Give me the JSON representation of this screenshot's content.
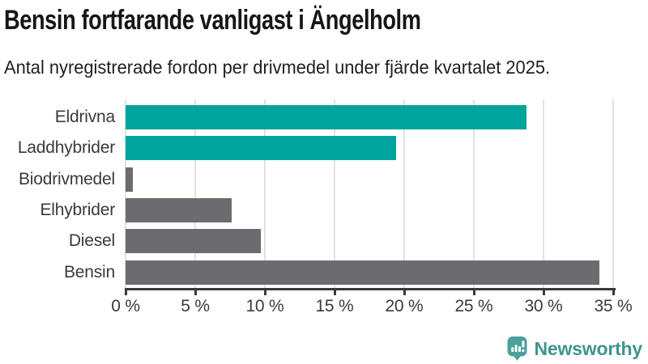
{
  "header": {
    "title": "Bensin fortfarande vanligast i Ängelholm",
    "subtitle": "Antal nyregistrerade fordon per drivmedel under fjärde kvartalet 2025."
  },
  "chart_data": {
    "type": "bar",
    "orientation": "horizontal",
    "title": "Bensin fortfarande vanligast i Ängelholm",
    "subtitle": "Antal nyregistrerade fordon per drivmedel under fjärde kvartalet 2025.",
    "categories": [
      "Eldrivna",
      "Laddhybrider",
      "Biodrivmedel",
      "Elhybrider",
      "Diesel",
      "Bensin"
    ],
    "values": [
      28.8,
      19.4,
      0.5,
      7.6,
      9.7,
      34.0
    ],
    "value_unit": "%",
    "bar_colors": [
      "#00a49c",
      "#00a49c",
      "#6b6b70",
      "#6b6b70",
      "#6b6b70",
      "#6b6b70"
    ],
    "xlabel": "",
    "ylabel": "",
    "xlim": [
      0,
      35
    ],
    "x_tick_values": [
      0,
      5,
      10,
      15,
      20,
      25,
      30,
      35
    ],
    "x_tick_labels": [
      "0 %",
      "5 %",
      "10 %",
      "15 %",
      "20 %",
      "25 %",
      "30 %",
      "35 %"
    ],
    "grid": true,
    "legend": false
  },
  "footer": {
    "brand": "Newsworthy"
  },
  "colors": {
    "accent_teal": "#00a49c",
    "bar_gray": "#6b6b70",
    "gridline": "#e2e2e2",
    "axis": "#3a3a3a",
    "title_text": "#161616",
    "label_gray": "#3a3a3a",
    "logo_icon": "#4aa19a",
    "logo_text": "#3f948d",
    "background": "#ffffff"
  }
}
